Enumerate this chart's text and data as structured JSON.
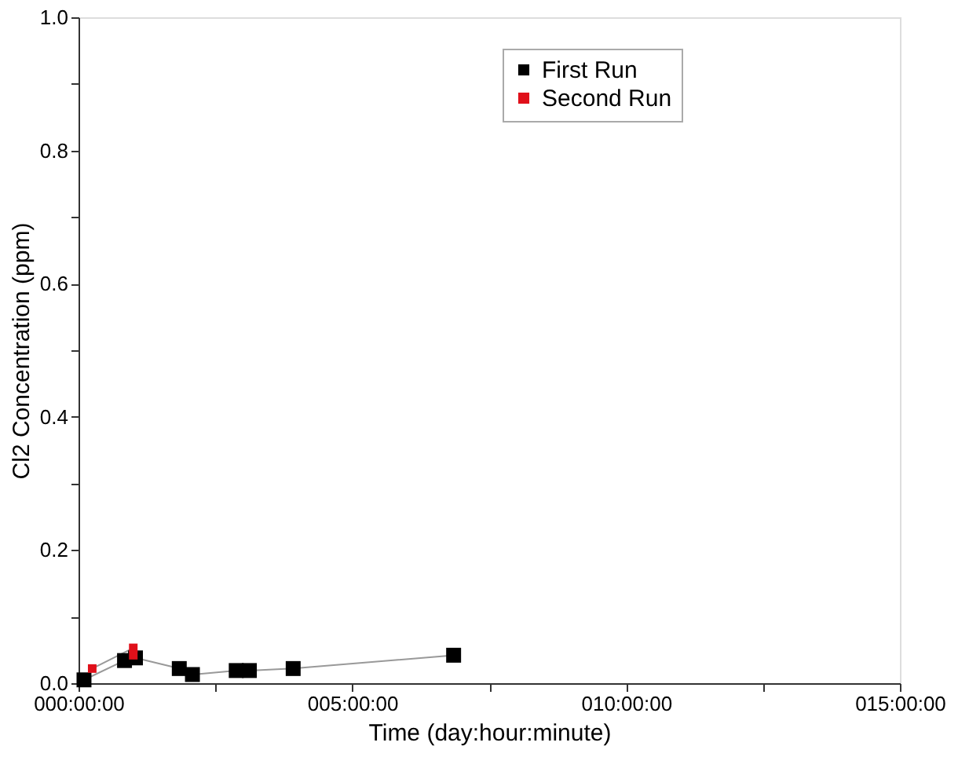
{
  "chart_data": {
    "type": "line",
    "xlabel": "Time (day:hour:minute)",
    "ylabel": "Cl2 Concentration (ppm)",
    "xlim": [
      0,
      15
    ],
    "xticks": [
      {
        "value": 0,
        "label": "000:00:00"
      },
      {
        "value": 2.5,
        "label": null
      },
      {
        "value": 5,
        "label": "005:00:00"
      },
      {
        "value": 7.5,
        "label": null
      },
      {
        "value": 10,
        "label": "010:00:00"
      },
      {
        "value": 12.5,
        "label": null
      },
      {
        "value": 15,
        "label": "015:00:00"
      }
    ],
    "ylim": [
      0,
      1
    ],
    "yticks": [
      {
        "value": 0,
        "label": "0.0"
      },
      {
        "value": 0.1,
        "label": null
      },
      0.2,
      {
        "value": 0.3,
        "label": null
      },
      0.4,
      {
        "value": 0.5,
        "label": null
      },
      0.6,
      {
        "value": 0.7,
        "label": null
      },
      0.8,
      {
        "value": 0.9,
        "label": null
      },
      {
        "value": 1,
        "label": "1.0"
      }
    ],
    "marker": "square",
    "grid": false,
    "legend": "top right",
    "series": [
      {
        "name": "First Run",
        "color": "#000000",
        "x": [
          0.1,
          0.84,
          1.04,
          1.84,
          2.08,
          2.88,
          3.12,
          3.92,
          6.85
        ],
        "values": [
          0.005,
          0.034,
          0.038,
          0.022,
          0.013,
          0.019,
          0.019,
          0.022,
          0.042
        ]
      },
      {
        "name": "Second Run",
        "color": "#e0101a",
        "x": [
          0.25,
          1.0,
          1.0
        ],
        "values": [
          0.022,
          0.053,
          0.042
        ]
      }
    ]
  }
}
